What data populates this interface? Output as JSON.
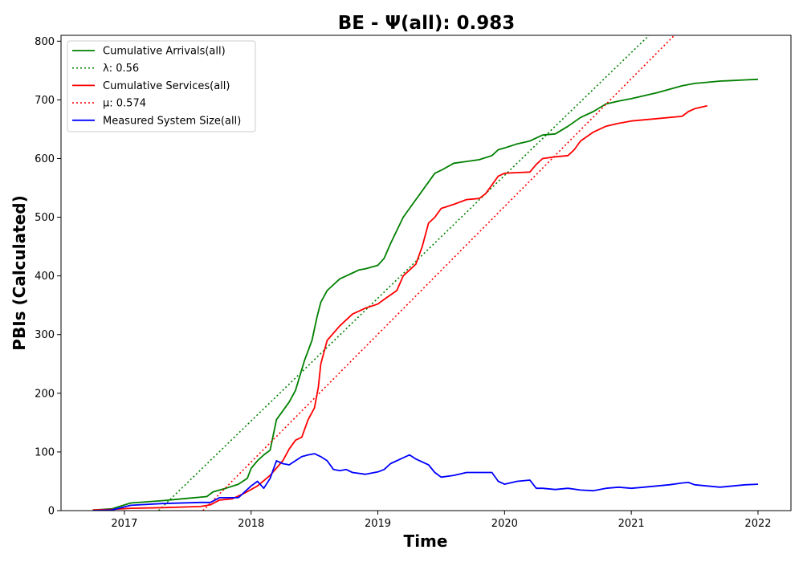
{
  "chart_data": {
    "type": "line",
    "title": "BE -  Ψ(all): 0.983",
    "xlabel": "Time",
    "ylabel": "PBIs (Calculated)",
    "xlim": [
      2016.5,
      2022.26
    ],
    "ylim": [
      0,
      810
    ],
    "x_ticks": [
      2017,
      2018,
      2019,
      2020,
      2021,
      2022
    ],
    "x_tick_labels": [
      "2017",
      "2018",
      "2019",
      "2020",
      "2021",
      "2022"
    ],
    "y_ticks": [
      0,
      100,
      200,
      300,
      400,
      500,
      600,
      700,
      800
    ],
    "y_tick_labels": [
      "0",
      "100",
      "200",
      "300",
      "400",
      "500",
      "600",
      "700",
      "800"
    ],
    "grid": false,
    "legend": "top-left",
    "series": [
      {
        "name": "Cumulative Arrivals(all)",
        "style": "solid",
        "color": "#008000",
        "x": [
          2016.75,
          2016.9,
          2017.05,
          2017.3,
          2017.5,
          2017.65,
          2017.7,
          2017.8,
          2017.9,
          2017.97,
          2018.0,
          2018.05,
          2018.1,
          2018.15,
          2018.2,
          2018.3,
          2018.35,
          2018.42,
          2018.48,
          2018.52,
          2018.55,
          2018.6,
          2018.65,
          2018.7,
          2018.75,
          2018.8,
          2018.85,
          2018.9,
          2019.0,
          2019.05,
          2019.1,
          2019.2,
          2019.3,
          2019.4,
          2019.45,
          2019.5,
          2019.6,
          2019.7,
          2019.8,
          2019.9,
          2019.95,
          2020.0,
          2020.1,
          2020.2,
          2020.3,
          2020.4,
          2020.5,
          2020.6,
          2020.7,
          2020.8,
          2020.9,
          2021.0,
          2021.1,
          2021.2,
          2021.3,
          2021.4,
          2021.5,
          2021.6,
          2021.7,
          2021.8,
          2021.9,
          2022.0
        ],
        "values": [
          1,
          3,
          13,
          17,
          21,
          24,
          32,
          38,
          45,
          55,
          72,
          85,
          95,
          103,
          155,
          185,
          205,
          255,
          290,
          330,
          355,
          375,
          385,
          395,
          400,
          405,
          410,
          412,
          418,
          430,
          455,
          500,
          530,
          560,
          575,
          580,
          592,
          595,
          598,
          605,
          615,
          618,
          625,
          630,
          640,
          642,
          655,
          670,
          680,
          693,
          698,
          702,
          707,
          712,
          718,
          724,
          728,
          730,
          732,
          733,
          734,
          735
        ]
      },
      {
        "name": "λ: 0.56",
        "style": "dotted",
        "color": "#008000",
        "x": [
          2017.27,
          2021.14
        ],
        "values": [
          0,
          810
        ]
      },
      {
        "name": "Cumulative Services(all)",
        "style": "solid",
        "color": "#ff0000",
        "x": [
          2016.75,
          2016.9,
          2017.05,
          2017.3,
          2017.6,
          2017.68,
          2017.75,
          2017.85,
          2017.95,
          2018.05,
          2018.15,
          2018.25,
          2018.3,
          2018.35,
          2018.4,
          2018.45,
          2018.5,
          2018.53,
          2018.55,
          2018.6,
          2018.7,
          2018.8,
          2018.9,
          2019.0,
          2019.05,
          2019.15,
          2019.2,
          2019.3,
          2019.35,
          2019.4,
          2019.45,
          2019.5,
          2019.6,
          2019.7,
          2019.8,
          2019.85,
          2019.9,
          2019.95,
          2020.0,
          2020.1,
          2020.2,
          2020.25,
          2020.3,
          2020.4,
          2020.5,
          2020.55,
          2020.6,
          2020.7,
          2020.8,
          2020.9,
          2021.0,
          2021.2,
          2021.4,
          2021.45,
          2021.5,
          2021.6
        ],
        "values": [
          1,
          2,
          4,
          5,
          7,
          10,
          18,
          20,
          30,
          42,
          60,
          85,
          105,
          120,
          125,
          155,
          175,
          210,
          250,
          290,
          315,
          335,
          345,
          352,
          360,
          375,
          400,
          420,
          450,
          490,
          500,
          515,
          522,
          530,
          532,
          540,
          555,
          570,
          575,
          576,
          577,
          590,
          600,
          603,
          605,
          615,
          630,
          645,
          655,
          660,
          664,
          668,
          672,
          680,
          685,
          690
        ]
      },
      {
        "name": "μ: 0.574",
        "style": "dotted",
        "color": "#ff0000",
        "x": [
          2017.62,
          2021.34
        ],
        "values": [
          0,
          810
        ]
      },
      {
        "name": "Measured System Size(all)",
        "style": "solid",
        "color": "#0000ff",
        "x": [
          2016.75,
          2016.9,
          2017.05,
          2017.3,
          2017.6,
          2017.68,
          2017.75,
          2017.9,
          2018.0,
          2018.05,
          2018.1,
          2018.15,
          2018.2,
          2018.25,
          2018.3,
          2018.4,
          2018.45,
          2018.5,
          2018.55,
          2018.6,
          2018.65,
          2018.7,
          2018.75,
          2018.8,
          2018.9,
          2019.0,
          2019.05,
          2019.1,
          2019.2,
          2019.25,
          2019.3,
          2019.4,
          2019.45,
          2019.5,
          2019.6,
          2019.7,
          2019.75,
          2019.9,
          2019.95,
          2020.0,
          2020.1,
          2020.2,
          2020.25,
          2020.3,
          2020.4,
          2020.5,
          2020.6,
          2020.7,
          2020.8,
          2020.9,
          2021.0,
          2021.1,
          2021.2,
          2021.3,
          2021.4,
          2021.45,
          2021.5,
          2021.6,
          2021.7,
          2021.8,
          2021.9,
          2022.0
        ],
        "values": [
          0,
          1,
          9,
          12,
          14,
          14,
          22,
          22,
          42,
          50,
          38,
          55,
          85,
          80,
          78,
          92,
          95,
          97,
          92,
          85,
          70,
          68,
          70,
          65,
          62,
          66,
          70,
          80,
          90,
          95,
          88,
          78,
          65,
          57,
          60,
          65,
          65,
          65,
          50,
          45,
          50,
          52,
          38,
          38,
          36,
          38,
          35,
          34,
          38,
          40,
          38,
          40,
          42,
          44,
          47,
          48,
          44,
          42,
          40,
          42,
          44,
          45
        ]
      }
    ]
  }
}
